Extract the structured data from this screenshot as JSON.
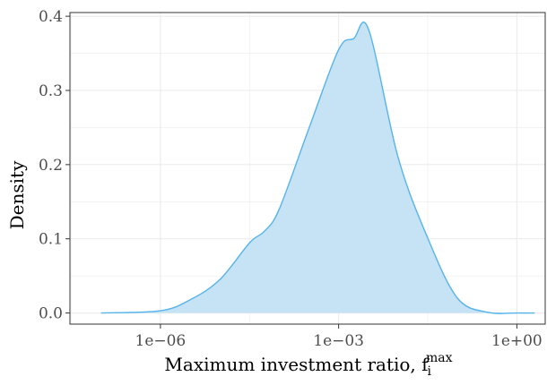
{
  "chart_data": {
    "type": "area",
    "xlabel": "Maximum investment ratio, f",
    "xlabel_sub": "i",
    "xlabel_sup": "max",
    "ylabel": "Density",
    "x_scale": "log10",
    "xlim": [
      3e-08,
      3.0
    ],
    "ylim": [
      -0.015,
      0.405
    ],
    "x_ticks": [
      {
        "value": 1e-06,
        "label": "1e−06"
      },
      {
        "value": 0.001,
        "label": "1e−03"
      },
      {
        "value": 1,
        "label": "1e+00"
      }
    ],
    "y_ticks": [
      {
        "value": 0.0,
        "label": "0.0"
      },
      {
        "value": 0.1,
        "label": "0.1"
      },
      {
        "value": 0.2,
        "label": "0.2"
      },
      {
        "value": 0.3,
        "label": "0.3"
      },
      {
        "value": 0.4,
        "label": "0.4"
      }
    ],
    "grid": true,
    "colors": {
      "fill": "#c6e2f5",
      "line": "#56b4e9",
      "grid": "#ebebeb",
      "axis": "#333333"
    },
    "series": [
      {
        "x": [
          1e-07,
          1e-06,
          3.2e-06,
          1e-05,
          3.2e-05,
          5.6e-05,
          0.0001,
          0.00032,
          0.001,
          0.0018,
          0.0032,
          0.01,
          0.032,
          0.1,
          0.32,
          1.0,
          2.0
        ],
        "y": [
          0.0,
          0.003,
          0.018,
          0.045,
          0.095,
          0.11,
          0.14,
          0.25,
          0.355,
          0.37,
          0.382,
          0.21,
          0.1,
          0.02,
          0.001,
          0.0,
          0.0
        ]
      }
    ]
  }
}
